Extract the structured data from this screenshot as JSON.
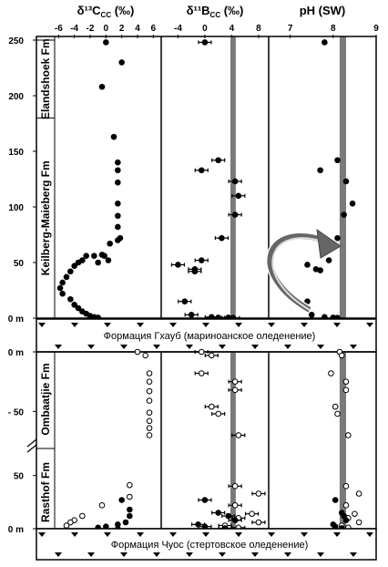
{
  "chart_data": {
    "type": "scatter",
    "panels": [
      {
        "title": "δ¹³C",
        "title_sub": "CC",
        "title_unit": "(‰)",
        "ticks": [
          -6,
          -4,
          -2,
          0,
          2,
          4,
          6
        ],
        "tick_labels": [
          "-6",
          "-4",
          "-2",
          "0",
          "2",
          "4",
          "6"
        ],
        "xlim": [
          -6.5,
          7
        ]
      },
      {
        "title": "δ¹¹B",
        "title_sub": "CC",
        "title_unit": "(‰)",
        "ticks": [
          -4,
          0,
          4,
          8
        ],
        "tick_labels": [
          "-4",
          "0",
          "4",
          "8"
        ],
        "xlim": [
          -6.5,
          9.5
        ],
        "band": [
          3.8,
          4.6
        ]
      },
      {
        "title": "pH (SW)",
        "title_sub": "",
        "title_unit": "",
        "ticks": [
          7,
          8,
          9
        ],
        "tick_labels": [
          "7",
          "8",
          "9"
        ],
        "xlim": [
          6.5,
          9
        ],
        "band": [
          8.15,
          8.3
        ]
      }
    ],
    "upper_section": {
      "y_ticks": [
        0,
        50,
        100,
        150,
        200,
        250
      ],
      "y_tick_labels": [
        "0 m",
        "50",
        "100",
        "150",
        "200",
        "250"
      ],
      "ylim": [
        0,
        250
      ],
      "formations": [
        {
          "name": "Keilberg-Maieberg Fm",
          "from": 0,
          "to": 180
        },
        {
          "name": "Elandshoek Fm",
          "from": 180,
          "to": 250
        }
      ],
      "d13c_filled": [
        [
          0,
          248
        ],
        [
          2,
          230
        ],
        [
          -0.5,
          208
        ],
        [
          1,
          163
        ],
        [
          1.5,
          140
        ],
        [
          1.5,
          133
        ],
        [
          1.5,
          122
        ],
        [
          1.5,
          103
        ],
        [
          1.5,
          92
        ],
        [
          1.5,
          82
        ],
        [
          1.8,
          72
        ],
        [
          1.5,
          70
        ],
        [
          0.5,
          67
        ],
        [
          0.3,
          52
        ],
        [
          -0.2,
          56
        ],
        [
          -0.5,
          57
        ],
        [
          -1,
          50
        ],
        [
          -1.5,
          56
        ],
        [
          -2.5,
          56
        ],
        [
          -3,
          52
        ],
        [
          -3.5,
          50
        ],
        [
          -4,
          47
        ],
        [
          -4.5,
          42
        ],
        [
          -5,
          37
        ],
        [
          -5.5,
          32
        ],
        [
          -5.8,
          27
        ],
        [
          -5.5,
          22
        ],
        [
          -4.5,
          17
        ],
        [
          -4,
          12
        ],
        [
          -3.5,
          9
        ],
        [
          -3,
          6
        ],
        [
          -2.5,
          4
        ],
        [
          -2,
          2
        ],
        [
          -1.5,
          1
        ],
        [
          -1,
          0.5
        ]
      ],
      "d11b_filled": [
        [
          0,
          248
        ],
        [
          2,
          142
        ],
        [
          -0.5,
          133
        ],
        [
          4.5,
          123
        ],
        [
          5,
          110
        ],
        [
          4.5,
          93
        ],
        [
          2.5,
          72
        ],
        [
          -0.5,
          52
        ],
        [
          -4,
          48
        ],
        [
          -1.5,
          44
        ],
        [
          -1.5,
          42
        ],
        [
          -3,
          15
        ],
        [
          -2,
          3
        ],
        [
          1,
          1
        ],
        [
          2,
          0.5
        ],
        [
          3.5,
          0.5
        ],
        [
          4.2,
          0.3
        ]
      ],
      "ph_filled": [
        [
          7.8,
          248
        ],
        [
          8.1,
          142
        ],
        [
          7.7,
          133
        ],
        [
          8.3,
          123
        ],
        [
          8.45,
          103
        ],
        [
          8.25,
          93
        ],
        [
          8.1,
          72
        ],
        [
          7.9,
          52
        ],
        [
          7.4,
          48
        ],
        [
          7.6,
          44
        ],
        [
          7.7,
          43
        ],
        [
          7.4,
          15
        ],
        [
          7.5,
          3
        ],
        [
          7.8,
          1
        ],
        [
          8,
          0.5
        ],
        [
          8.1,
          0.3
        ]
      ]
    },
    "label_gxaub": "Формация Гхауб (мариноанское оледенение)",
    "lower_section": {
      "ombaatjie_y_ticks": [
        0,
        -50
      ],
      "ombaatjie_y_tick_labels": [
        "0 m",
        "- 50"
      ],
      "rasthof_y_ticks": [
        0,
        50
      ],
      "rasthof_y_tick_labels": [
        "0 m",
        "50"
      ],
      "formations": [
        "Ombaatjie Fm",
        "Rasthof Fm"
      ],
      "ombaatjie_d13c_open": [
        [
          4,
          0
        ],
        [
          5,
          -3
        ],
        [
          5.5,
          -18
        ],
        [
          5.5,
          -25
        ],
        [
          5.5,
          -33
        ],
        [
          5.5,
          -41
        ],
        [
          5.5,
          -51
        ],
        [
          5.5,
          -58
        ],
        [
          5.5,
          -64
        ],
        [
          5.5,
          -70
        ]
      ],
      "ombaatjie_d11b_open": [
        [
          -0.5,
          0
        ],
        [
          1,
          -3
        ],
        [
          -0.5,
          -18
        ],
        [
          4.5,
          -25
        ],
        [
          4.5,
          -32
        ],
        [
          1,
          -46
        ],
        [
          2,
          -52
        ],
        [
          5,
          -70
        ]
      ],
      "ombaatjie_ph_open": [
        [
          8.15,
          0
        ],
        [
          8.2,
          -3
        ],
        [
          7.95,
          -18
        ],
        [
          8.3,
          -25
        ],
        [
          8.3,
          -32
        ],
        [
          8.05,
          -46
        ],
        [
          8.1,
          -52
        ],
        [
          8.35,
          -70
        ]
      ],
      "rasthof_d13c_filled": [
        [
          2,
          27
        ],
        [
          3,
          18
        ],
        [
          3,
          12
        ],
        [
          2.5,
          6
        ],
        [
          1.5,
          4
        ],
        [
          0,
          2
        ],
        [
          -1,
          1
        ],
        [
          1.5,
          0
        ]
      ],
      "rasthof_d13c_open": [
        [
          3,
          41
        ],
        [
          3,
          30
        ],
        [
          -0.5,
          22
        ],
        [
          -3,
          12
        ],
        [
          -4,
          8
        ],
        [
          -4.5,
          6
        ],
        [
          -5,
          3
        ]
      ],
      "rasthof_d11b_filled": [
        [
          0,
          27
        ],
        [
          2,
          15
        ],
        [
          3.5,
          12
        ],
        [
          4.5,
          8
        ],
        [
          -1,
          4
        ],
        [
          0,
          2
        ],
        [
          3,
          0.5
        ]
      ],
      "rasthof_d11b_open": [
        [
          8,
          33
        ],
        [
          4.5,
          40
        ],
        [
          4.5,
          22
        ],
        [
          7,
          14
        ],
        [
          5,
          10
        ],
        [
          8,
          6
        ],
        [
          3,
          3
        ],
        [
          5,
          1
        ]
      ],
      "rasthof_ph_filled": [
        [
          8.05,
          27
        ],
        [
          8.2,
          15
        ],
        [
          8.25,
          12
        ],
        [
          8.3,
          8
        ],
        [
          8,
          4
        ],
        [
          8.05,
          2
        ],
        [
          8.2,
          0.5
        ]
      ],
      "rasthof_ph_open": [
        [
          8.6,
          33
        ],
        [
          8.3,
          40
        ],
        [
          8.3,
          22
        ],
        [
          8.5,
          14
        ],
        [
          8.35,
          10
        ],
        [
          8.6,
          6
        ],
        [
          8.2,
          3
        ],
        [
          8.35,
          1
        ]
      ]
    },
    "label_chuos": "Формация Чуос (стертовское оледенение)"
  }
}
